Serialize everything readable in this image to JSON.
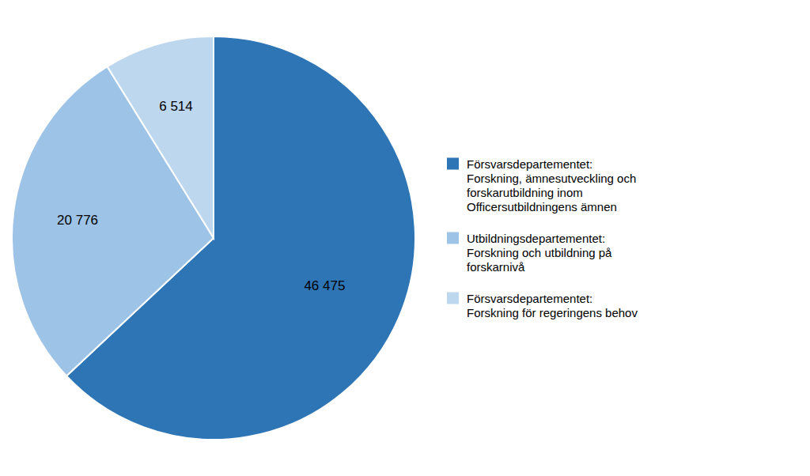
{
  "chart_data": {
    "type": "pie",
    "categories": [
      "Försvarsdepartementet:\nForskning, ämnesutveckling och\nforskarutbildning inom\nOfficersutbildningens ämnen",
      "Utbildningsdepartementet:\nForskning och utbildning på\nforskarnivå",
      "Försvarsdepartementet:\nForskning för regeringens behov"
    ],
    "values": [
      46475,
      20776,
      6514
    ],
    "value_labels": [
      "46 475",
      "20 776",
      "6 514"
    ],
    "colors": [
      "#2e75b6",
      "#9dc3e6",
      "#bdd7ee"
    ],
    "data_labels": true,
    "legend": "right"
  }
}
